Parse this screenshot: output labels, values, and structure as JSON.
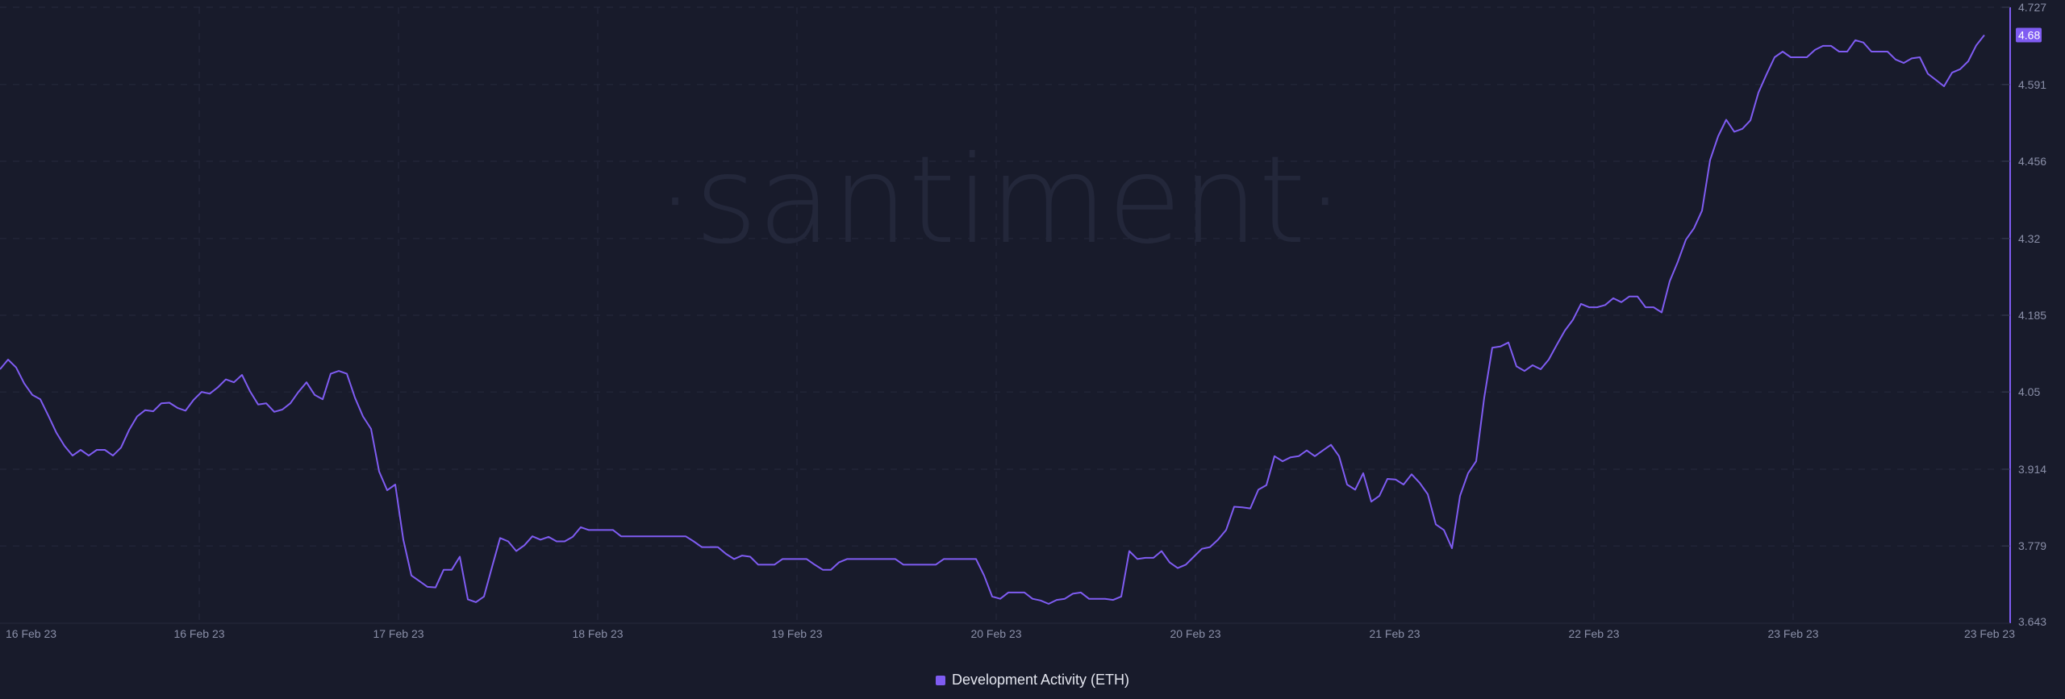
{
  "watermark": "santiment",
  "colors": {
    "background": "#181b2b",
    "line": "#7f5cf2",
    "grid": "#262a3d",
    "axis_text": "#8a8fa8"
  },
  "legend": {
    "label": "Development Activity (ETH)"
  },
  "chart_data": {
    "type": "line",
    "title": "",
    "xlabel": "",
    "ylabel": "",
    "ylim": [
      3.643,
      4.727
    ],
    "grid": true,
    "legend_position": "bottom",
    "y_axis_position": "right",
    "yticks": [
      "4.727",
      "4.591",
      "4.456",
      "4.32",
      "4.185",
      "4.05",
      "3.914",
      "3.779",
      "3.643"
    ],
    "xticks": [
      "16 Feb 23",
      "16 Feb 23",
      "17 Feb 23",
      "18 Feb 23",
      "19 Feb 23",
      "20 Feb 23",
      "20 Feb 23",
      "21 Feb 23",
      "22 Feb 23",
      "23 Feb 23",
      "23 Feb 23"
    ],
    "last_value_label": "4.68",
    "series": [
      {
        "name": "Development Activity (ETH)",
        "values": [
          4.09,
          4.107,
          4.093,
          4.065,
          4.045,
          4.037,
          4.008,
          3.978,
          3.955,
          3.938,
          3.948,
          3.938,
          3.948,
          3.948,
          3.938,
          3.952,
          3.983,
          4.007,
          4.018,
          4.016,
          4.03,
          4.031,
          4.022,
          4.017,
          4.036,
          4.05,
          4.047,
          4.058,
          4.072,
          4.067,
          4.08,
          4.051,
          4.028,
          4.03,
          4.015,
          4.019,
          4.03,
          4.05,
          4.067,
          4.045,
          4.037,
          4.082,
          4.087,
          4.082,
          4.04,
          4.007,
          3.985,
          3.91,
          3.877,
          3.887,
          3.79,
          3.727,
          3.717,
          3.707,
          3.706,
          3.737,
          3.737,
          3.76,
          3.685,
          3.68,
          3.69,
          3.742,
          3.793,
          3.787,
          3.77,
          3.78,
          3.796,
          3.79,
          3.795,
          3.787,
          3.787,
          3.795,
          3.812,
          3.807,
          3.807,
          3.807,
          3.807,
          3.796,
          3.796,
          3.796,
          3.796,
          3.796,
          3.796,
          3.796,
          3.796,
          3.796,
          3.787,
          3.777,
          3.777,
          3.777,
          3.765,
          3.756,
          3.762,
          3.76,
          3.746,
          3.746,
          3.746,
          3.756,
          3.756,
          3.756,
          3.756,
          3.746,
          3.737,
          3.737,
          3.75,
          3.756,
          3.756,
          3.756,
          3.756,
          3.756,
          3.756,
          3.756,
          3.746,
          3.746,
          3.746,
          3.746,
          3.746,
          3.756,
          3.756,
          3.756,
          3.756,
          3.756,
          3.727,
          3.69,
          3.686,
          3.697,
          3.697,
          3.697,
          3.686,
          3.683,
          3.677,
          3.684,
          3.686,
          3.695,
          3.697,
          3.686,
          3.686,
          3.686,
          3.684,
          3.69,
          3.77,
          3.756,
          3.758,
          3.758,
          3.77,
          3.75,
          3.74,
          3.746,
          3.76,
          3.774,
          3.777,
          3.79,
          3.807,
          3.848,
          3.847,
          3.845,
          3.878,
          3.886,
          3.937,
          3.928,
          3.935,
          3.937,
          3.947,
          3.937,
          3.947,
          3.957,
          3.937,
          3.887,
          3.878,
          3.907,
          3.857,
          3.867,
          3.897,
          3.896,
          3.887,
          3.905,
          3.89,
          3.87,
          3.817,
          3.807,
          3.775,
          3.867,
          3.907,
          3.928,
          4.04,
          4.128,
          4.13,
          4.137,
          4.095,
          4.087,
          4.097,
          4.09,
          4.107,
          4.133,
          4.158,
          4.177,
          4.205,
          4.199,
          4.199,
          4.203,
          4.215,
          4.208,
          4.218,
          4.218,
          4.199,
          4.199,
          4.19,
          4.245,
          4.279,
          4.318,
          4.338,
          4.369,
          4.458,
          4.5,
          4.529,
          4.508,
          4.513,
          4.528,
          4.577,
          4.609,
          4.639,
          4.649,
          4.639,
          4.639,
          4.639,
          4.652,
          4.659,
          4.659,
          4.649,
          4.649,
          4.669,
          4.665,
          4.649,
          4.649,
          4.649,
          4.635,
          4.629,
          4.637,
          4.639,
          4.61,
          4.599,
          4.588,
          4.612,
          4.618,
          4.632,
          4.66,
          4.678
        ]
      }
    ]
  }
}
